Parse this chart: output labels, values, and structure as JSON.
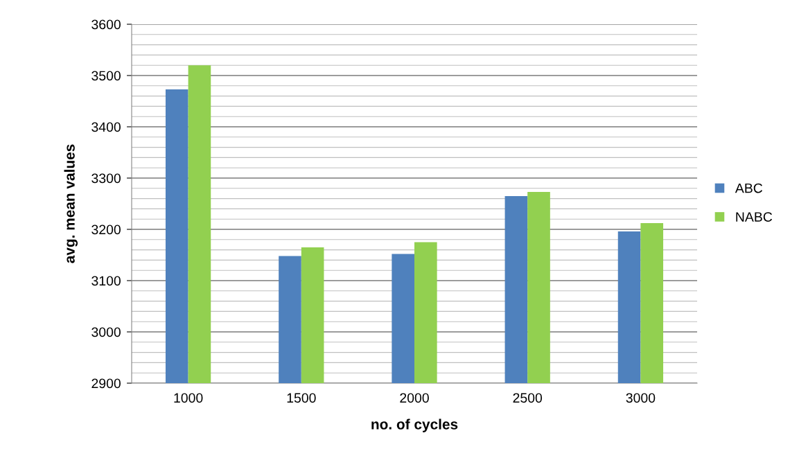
{
  "chart_data": {
    "type": "bar",
    "xlabel": "no. of cycles",
    "ylabel": "avg. mean values",
    "categories": [
      "1000",
      "1500",
      "2000",
      "2500",
      "3000"
    ],
    "series": [
      {
        "name": "ABC",
        "color": "#4f81bd",
        "values": [
          3473,
          3148,
          3152,
          3265,
          3196
        ]
      },
      {
        "name": "NABC",
        "color": "#92d050",
        "values": [
          3520,
          3165,
          3175,
          3273,
          3212
        ]
      }
    ],
    "ylim": [
      2900,
      3600
    ],
    "yticks": [
      2900,
      3000,
      3100,
      3200,
      3300,
      3400,
      3500,
      3600
    ],
    "grid": "y",
    "legend": "right"
  }
}
